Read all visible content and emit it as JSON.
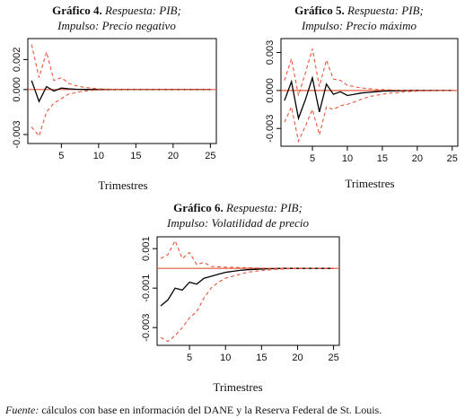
{
  "source": {
    "lead": "Fuente:",
    "text": "cálculos con base en información del DANE y la Reserva Federal de St. Louis."
  },
  "colors": {
    "irf": "#000000",
    "bands": "#e8553a",
    "zero_line": "#e8553a",
    "axis": "#000000"
  },
  "chart_data": [
    {
      "type": "line",
      "title_num": "Gráfico 4.",
      "title_rest": "Respuesta: PIB;",
      "subtitle": "Impulso: Precio negativo",
      "xlabel": "Trimestres",
      "ylabel": "",
      "xlim": [
        0.5,
        25.8
      ],
      "ylim": [
        -0.0036,
        0.0034
      ],
      "xticks": [
        5,
        10,
        15,
        20,
        25
      ],
      "yticks": [
        -0.003,
        0.0,
        0.002
      ],
      "ytick_labels": [
        "-0.003",
        "0.000",
        "0.002"
      ],
      "hline": 0,
      "x": [
        1,
        2,
        3,
        4,
        5,
        6,
        7,
        8,
        9,
        10,
        11,
        12,
        13,
        14,
        15,
        16,
        17,
        18,
        19,
        20,
        21,
        22,
        23,
        24,
        25
      ],
      "series": [
        {
          "role": "irf",
          "values": [
            0.0006,
            -0.0008,
            0.0002,
            -0.0001,
            0.0001,
            5e-05,
            2e-05,
            1e-05,
            0,
            0,
            0,
            0,
            0,
            0,
            0,
            0,
            0,
            0,
            0,
            0,
            0,
            0,
            0,
            0,
            0
          ]
        },
        {
          "role": "upper",
          "values": [
            0.003,
            0.0008,
            0.0025,
            0.0006,
            0.0008,
            0.0004,
            0.00025,
            0.00015,
            0.0001,
            5e-05,
            3e-05,
            2e-05,
            1e-05,
            0,
            0,
            0,
            0,
            0,
            0,
            0,
            0,
            0,
            0,
            0,
            0
          ]
        },
        {
          "role": "lower",
          "values": [
            -0.0025,
            -0.0031,
            -0.0015,
            -0.0009,
            -0.0006,
            -0.0003,
            -0.0002,
            -0.0001,
            -5e-05,
            -3e-05,
            -2e-05,
            -1e-05,
            0,
            0,
            0,
            0,
            0,
            0,
            0,
            0,
            0,
            0,
            0,
            0,
            0
          ]
        }
      ]
    },
    {
      "type": "line",
      "title_num": "Gráfico 5.",
      "title_rest": "Respuesta: PIB;",
      "subtitle": "Impulso: Precio máximo",
      "xlabel": "Trimestres",
      "ylabel": "",
      "xlim": [
        0.5,
        25.8
      ],
      "ylim": [
        -0.0044,
        0.0041
      ],
      "xticks": [
        5,
        10,
        15,
        20,
        25
      ],
      "yticks": [
        -0.003,
        0.0,
        0.003
      ],
      "ytick_labels": [
        "-0.003",
        "0.000",
        "0.003"
      ],
      "hline": 0,
      "x": [
        1,
        2,
        3,
        4,
        5,
        6,
        7,
        8,
        9,
        10,
        11,
        12,
        13,
        14,
        15,
        16,
        17,
        18,
        19,
        20,
        21,
        22,
        23,
        24,
        25
      ],
      "series": [
        {
          "role": "irf",
          "values": [
            -0.0008,
            0.0007,
            -0.0022,
            -0.0007,
            0.001,
            -0.0017,
            0.0005,
            -0.0003,
            -0.0001,
            -0.0004,
            -0.0003,
            -0.0002,
            -0.00015,
            -0.0001,
            -5e-05,
            -3e-05,
            -2e-05,
            -1e-05,
            0,
            0,
            0,
            0,
            0,
            0,
            0
          ]
        },
        {
          "role": "upper",
          "values": [
            0.0008,
            0.0025,
            -0.0004,
            0.0014,
            0.0033,
            0.0003,
            0.0024,
            0.0009,
            0.0008,
            0.0004,
            0.0003,
            0.0002,
            0.00015,
            0.0001,
            8e-05,
            5e-05,
            3e-05,
            2e-05,
            1e-05,
            0,
            0,
            0,
            0,
            0,
            0
          ]
        },
        {
          "role": "lower",
          "values": [
            -0.0025,
            -0.0013,
            -0.004,
            -0.0028,
            -0.0015,
            -0.0035,
            -0.0013,
            -0.0015,
            -0.0012,
            -0.0011,
            -0.0009,
            -0.0007,
            -0.0005,
            -0.0004,
            -0.0003,
            -0.0002,
            -0.0002,
            -0.0001,
            -8e-05,
            -5e-05,
            -3e-05,
            -2e-05,
            -1e-05,
            0,
            0
          ]
        }
      ]
    },
    {
      "type": "line",
      "title_num": "Gráfico 6.",
      "title_rest": "Respuesta: PIB;",
      "subtitle": "Impulso: Volatilidad de precio",
      "xlabel": "Trimestres",
      "ylabel": "",
      "xlim": [
        0.5,
        25.8
      ],
      "ylim": [
        -0.0039,
        0.0016
      ],
      "xticks": [
        5,
        10,
        15,
        20,
        25
      ],
      "yticks": [
        -0.003,
        -0.001,
        0.001
      ],
      "ytick_labels": [
        "-0.003",
        "-0.001",
        "0.001"
      ],
      "hline": 0,
      "x": [
        1,
        2,
        3,
        4,
        5,
        6,
        7,
        8,
        9,
        10,
        11,
        12,
        13,
        14,
        15,
        16,
        17,
        18,
        19,
        20,
        21,
        22,
        23,
        24,
        25
      ],
      "series": [
        {
          "role": "irf",
          "values": [
            -0.0019,
            -0.0016,
            -0.001,
            -0.0011,
            -0.0007,
            -0.0008,
            -0.0005,
            -0.0004,
            -0.0003,
            -0.0002,
            -0.00015,
            -0.0001,
            -7e-05,
            -5e-05,
            -3e-05,
            -2e-05,
            -1e-05,
            0,
            0,
            0,
            0,
            0,
            0,
            0,
            0
          ]
        },
        {
          "role": "upper",
          "values": [
            0.0005,
            0.0007,
            0.0014,
            0.0005,
            0.0008,
            0.0002,
            0.0003,
            0.0001,
            8e-05,
            6e-05,
            5e-05,
            4e-05,
            3e-05,
            2e-05,
            1e-05,
            0,
            0,
            0,
            0,
            0,
            0,
            0,
            0,
            0,
            0
          ]
        },
        {
          "role": "lower",
          "values": [
            -0.0035,
            -0.0037,
            -0.0034,
            -0.003,
            -0.0025,
            -0.0022,
            -0.0015,
            -0.001,
            -0.0007,
            -0.0005,
            -0.0004,
            -0.0003,
            -0.0002,
            -0.00015,
            -0.0001,
            -8e-05,
            -5e-05,
            -3e-05,
            -2e-05,
            -1e-05,
            0,
            0,
            0,
            0,
            0
          ]
        }
      ]
    }
  ]
}
